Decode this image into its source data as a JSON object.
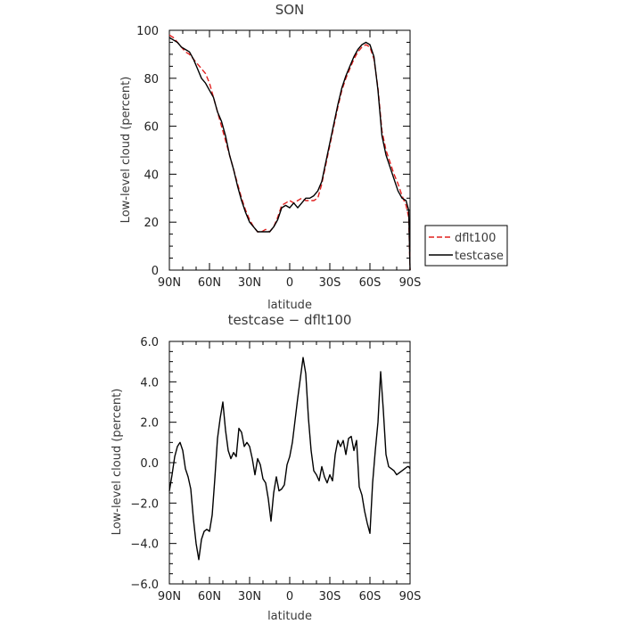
{
  "chart_data": [
    {
      "type": "line",
      "title": "SON",
      "xlabel": "latitude",
      "ylabel": "Low-level cloud (percent)",
      "xlim": [
        90,
        -90
      ],
      "ylim": [
        0,
        100
      ],
      "x_ticks": [
        "90N",
        "60N",
        "30N",
        "0",
        "30S",
        "60S",
        "90S"
      ],
      "y_ticks": [
        "0",
        "20",
        "40",
        "60",
        "80",
        "100"
      ],
      "legend_position": "right",
      "series": [
        {
          "name": "dflt100",
          "color": "#e0201f",
          "dash": "dashed",
          "x": [
            90,
            87,
            84,
            81,
            78,
            75,
            72,
            69,
            66,
            63,
            60,
            57,
            54,
            51,
            48,
            45,
            42,
            39,
            36,
            33,
            30,
            27,
            24,
            21,
            18,
            15,
            12,
            9,
            6,
            3,
            0,
            -3,
            -6,
            -9,
            -12,
            -15,
            -18,
            -21,
            -24,
            -27,
            -30,
            -33,
            -36,
            -39,
            -42,
            -45,
            -48,
            -51,
            -54,
            -57,
            -60,
            -63,
            -66,
            -69,
            -72,
            -75,
            -78,
            -81,
            -84,
            -87,
            -89,
            -90
          ],
          "values": [
            98,
            97,
            95,
            93,
            91,
            90,
            88,
            86,
            84,
            82,
            78,
            72,
            66,
            60,
            54,
            48,
            42,
            36,
            30,
            25,
            21,
            18,
            16,
            16,
            17,
            16,
            18,
            22,
            27,
            28,
            29,
            28,
            29,
            30,
            29,
            29,
            29,
            30,
            36,
            44,
            52,
            60,
            68,
            75,
            80,
            84,
            88,
            91,
            93,
            94,
            93,
            88,
            76,
            58,
            50,
            45,
            40,
            36,
            31,
            27,
            22,
            0
          ]
        },
        {
          "name": "testcase",
          "color": "#000000",
          "dash": "solid",
          "x": [
            90,
            87,
            84,
            81,
            78,
            75,
            72,
            69,
            66,
            63,
            60,
            57,
            54,
            51,
            48,
            45,
            42,
            39,
            36,
            33,
            30,
            27,
            24,
            21,
            18,
            15,
            12,
            9,
            6,
            3,
            0,
            -3,
            -6,
            -9,
            -12,
            -15,
            -18,
            -21,
            -24,
            -27,
            -30,
            -33,
            -36,
            -39,
            -42,
            -45,
            -48,
            -51,
            -54,
            -57,
            -60,
            -63,
            -66,
            -69,
            -72,
            -75,
            -78,
            -81,
            -84,
            -87,
            -89,
            -90
          ],
          "values": [
            97,
            96,
            95,
            93,
            92,
            91,
            88,
            84,
            80,
            78,
            75,
            72,
            66,
            62,
            56,
            48,
            42,
            35,
            29,
            24,
            20,
            18,
            16,
            16,
            16,
            16,
            18,
            21,
            26,
            27,
            26,
            28,
            26,
            28,
            30,
            30,
            31,
            33,
            37,
            45,
            53,
            61,
            69,
            76,
            81,
            85,
            89,
            92,
            94,
            95,
            94,
            89,
            75,
            56,
            48,
            43,
            38,
            33,
            30,
            29,
            25,
            0
          ]
        }
      ]
    },
    {
      "type": "line",
      "title": "testcase − dflt100",
      "xlabel": "latitude",
      "ylabel": "Low-level cloud (percent)",
      "xlim": [
        90,
        -90
      ],
      "ylim": [
        -6,
        6
      ],
      "x_ticks": [
        "90N",
        "60N",
        "30N",
        "0",
        "30S",
        "60S",
        "90S"
      ],
      "y_ticks": [
        "−6.0",
        "−4.0",
        "−2.0",
        "0.0",
        "2.0",
        "4.0",
        "6.0"
      ],
      "series": [
        {
          "color": "#000000",
          "x": [
            90,
            88,
            86,
            84,
            82,
            80,
            78,
            76,
            74,
            72,
            70,
            68,
            66,
            64,
            62,
            60,
            58,
            56,
            54,
            52,
            50,
            48,
            46,
            44,
            42,
            40,
            38,
            36,
            34,
            32,
            30,
            28,
            26,
            24,
            22,
            20,
            18,
            16,
            14,
            12,
            10,
            8,
            6,
            4,
            2,
            0,
            -2,
            -4,
            -6,
            -8,
            -10,
            -12,
            -14,
            -16,
            -18,
            -20,
            -22,
            -24,
            -26,
            -28,
            -30,
            -32,
            -34,
            -36,
            -38,
            -40,
            -42,
            -44,
            -46,
            -48,
            -50,
            -52,
            -54,
            -56,
            -58,
            -60,
            -62,
            -64,
            -66,
            -68,
            -70,
            -72,
            -74,
            -76,
            -78,
            -80,
            -82,
            -84,
            -86,
            -88,
            -89,
            -90
          ],
          "values": [
            -1.4,
            -0.6,
            0.3,
            0.8,
            1.0,
            0.6,
            -0.3,
            -0.7,
            -1.3,
            -2.8,
            -4.0,
            -4.8,
            -3.8,
            -3.4,
            -3.3,
            -3.4,
            -2.6,
            -0.8,
            1.2,
            2.2,
            3.0,
            1.6,
            0.6,
            0.2,
            0.5,
            0.3,
            1.7,
            1.5,
            0.8,
            1.0,
            0.8,
            0.2,
            -0.6,
            0.2,
            -0.1,
            -0.8,
            -1.0,
            -1.8,
            -2.9,
            -1.5,
            -0.7,
            -1.4,
            -1.3,
            -1.1,
            -0.1,
            0.3,
            1.0,
            2.1,
            3.2,
            4.2,
            5.2,
            4.4,
            2.2,
            0.6,
            -0.4,
            -0.6,
            -0.9,
            -0.2,
            -0.7,
            -1.0,
            -0.6,
            -0.9,
            0.4,
            1.1,
            0.8,
            1.1,
            0.4,
            1.2,
            1.3,
            0.6,
            1.1,
            -1.2,
            -1.6,
            -2.4,
            -3.0,
            -3.5,
            -1.0,
            0.6,
            2.0,
            4.5,
            2.6,
            0.4,
            -0.2,
            -0.3,
            -0.4,
            -0.6,
            -0.5,
            -0.4,
            -0.3,
            -0.2,
            -0.2,
            -0.3
          ]
        }
      ]
    }
  ]
}
